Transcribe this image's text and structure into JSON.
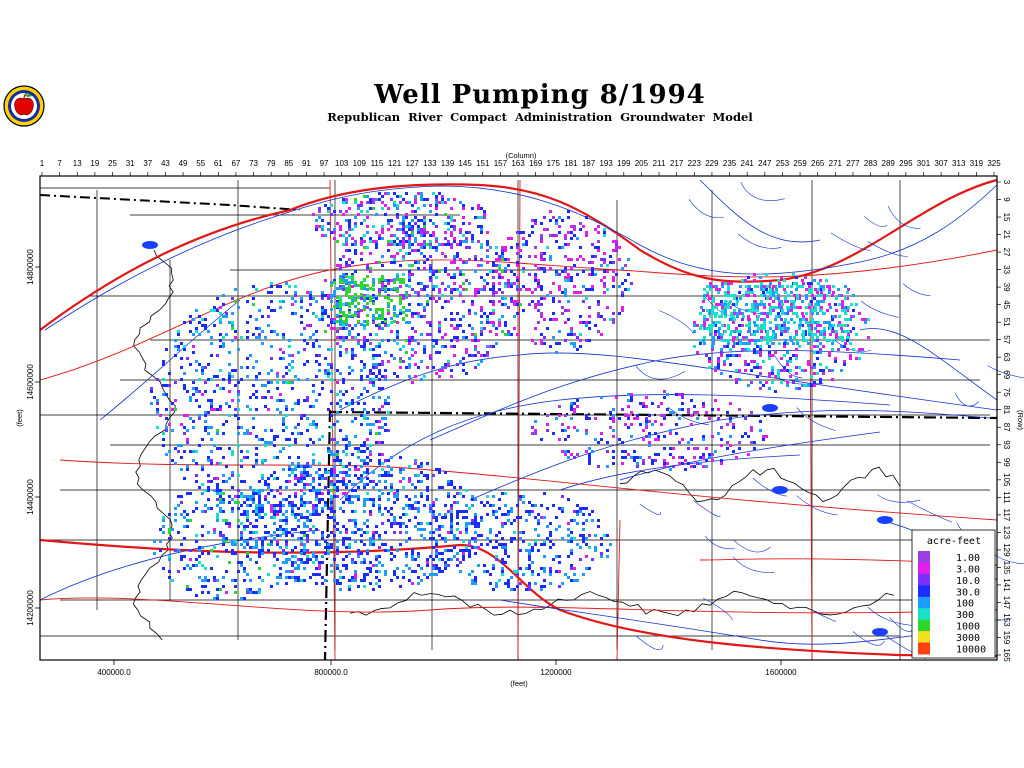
{
  "title": "Well Pumping 8/1994",
  "subtitle": "Republican River Compact Administration Groundwater Model",
  "axes": {
    "top_label": "(Column)",
    "right_label": "(Row)",
    "bottom_label": "(feet)",
    "left_label": "(feet)",
    "column_ticks": [
      "1",
      "7",
      "13",
      "19",
      "25",
      "31",
      "37",
      "43",
      "49",
      "55",
      "61",
      "67",
      "73",
      "79",
      "85",
      "91",
      "97",
      "103",
      "109",
      "115",
      "121",
      "127",
      "133",
      "139",
      "145",
      "151",
      "157",
      "163",
      "169",
      "175",
      "181",
      "187",
      "193",
      "199",
      "205",
      "211",
      "217",
      "223",
      "229",
      "235",
      "241",
      "247",
      "253",
      "259",
      "265",
      "271",
      "277",
      "283",
      "289",
      "295",
      "301",
      "307",
      "313",
      "319",
      "325"
    ],
    "row_ticks": [
      "3",
      "9",
      "15",
      "21",
      "27",
      "33",
      "39",
      "45",
      "51",
      "57",
      "63",
      "69",
      "75",
      "81",
      "87",
      "93",
      "99",
      "105",
      "111",
      "117",
      "123",
      "129",
      "135",
      "141",
      "147",
      "153",
      "159",
      "165"
    ],
    "x_ticks": [
      "400000.0",
      "800000.0",
      "1200000",
      "1600000"
    ],
    "y_ticks": [
      "14800000",
      "14600000",
      "14400000",
      "14200000"
    ]
  },
  "legend": {
    "title": "acre-feet",
    "entries": [
      {
        "label": "1.00",
        "color": "#9a3fe0"
      },
      {
        "label": "3.00",
        "color": "#e020e8"
      },
      {
        "label": "10.0",
        "color": "#7a30ff"
      },
      {
        "label": "30.0",
        "color": "#1a2cff"
      },
      {
        "label": "100",
        "color": "#1f9cff"
      },
      {
        "label": "300",
        "color": "#19e0c8"
      },
      {
        "label": "1000",
        "color": "#2ed62e"
      },
      {
        "label": "3000",
        "color": "#f0e020"
      },
      {
        "label": "10000",
        "color": "#ff4010"
      }
    ]
  },
  "colors": {
    "rivers": "#1030d0",
    "roads": "#e01818",
    "highway": "#ff1010",
    "boundaries": "#000000",
    "frame": "#000000"
  },
  "logo": {
    "icon": "apple-seal-icon"
  }
}
